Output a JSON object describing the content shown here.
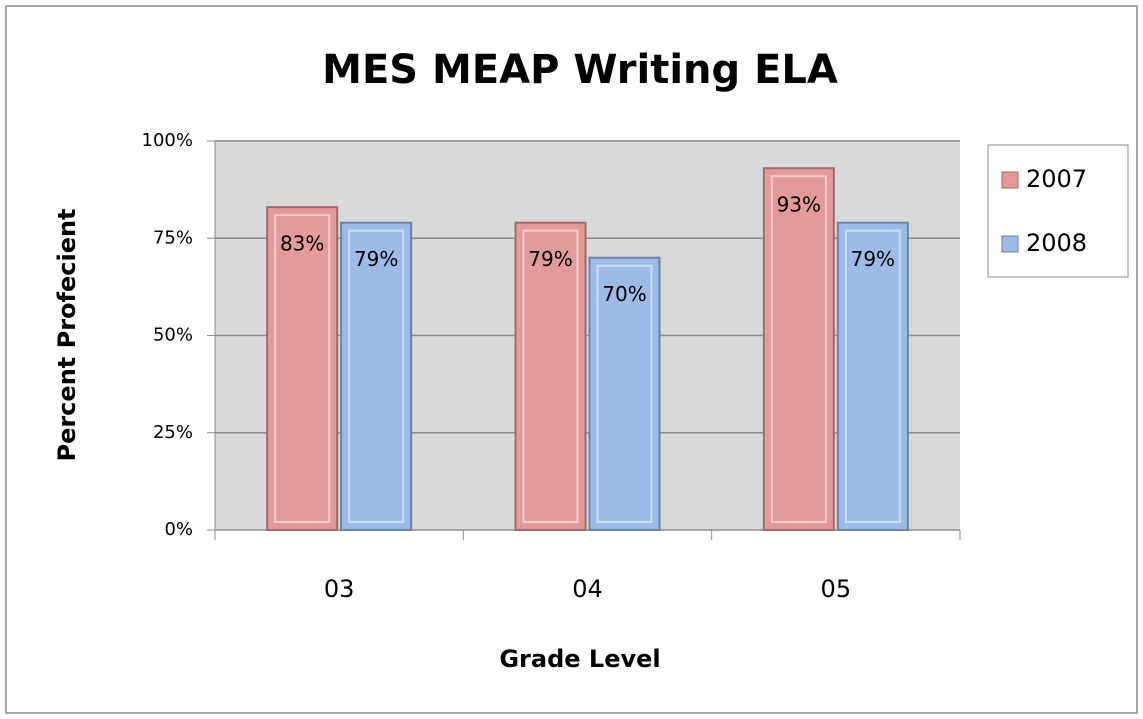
{
  "chart_data": {
    "type": "bar",
    "title": "MES MEAP Writing ELA",
    "x_label": "Grade Level",
    "y_label": "Percent Profecient",
    "categories": [
      "03",
      "04",
      "05"
    ],
    "series": [
      {
        "name": "2007",
        "color": "#e39a9a",
        "values": [
          83,
          79,
          93
        ],
        "value_labels": [
          "83%",
          "79%",
          "93%"
        ]
      },
      {
        "name": "2008",
        "color": "#9dbbe9",
        "values": [
          79,
          70,
          79
        ],
        "value_labels": [
          "79%",
          "70%",
          "79%"
        ]
      }
    ],
    "ylim": [
      0,
      100
    ],
    "yticks": [
      {
        "value": 0,
        "label": "0%"
      },
      {
        "value": 25,
        "label": "25%"
      },
      {
        "value": 50,
        "label": "50%"
      },
      {
        "value": 75,
        "label": "75%"
      },
      {
        "value": 100,
        "label": "100%"
      }
    ],
    "grid": true,
    "legend": "right"
  }
}
